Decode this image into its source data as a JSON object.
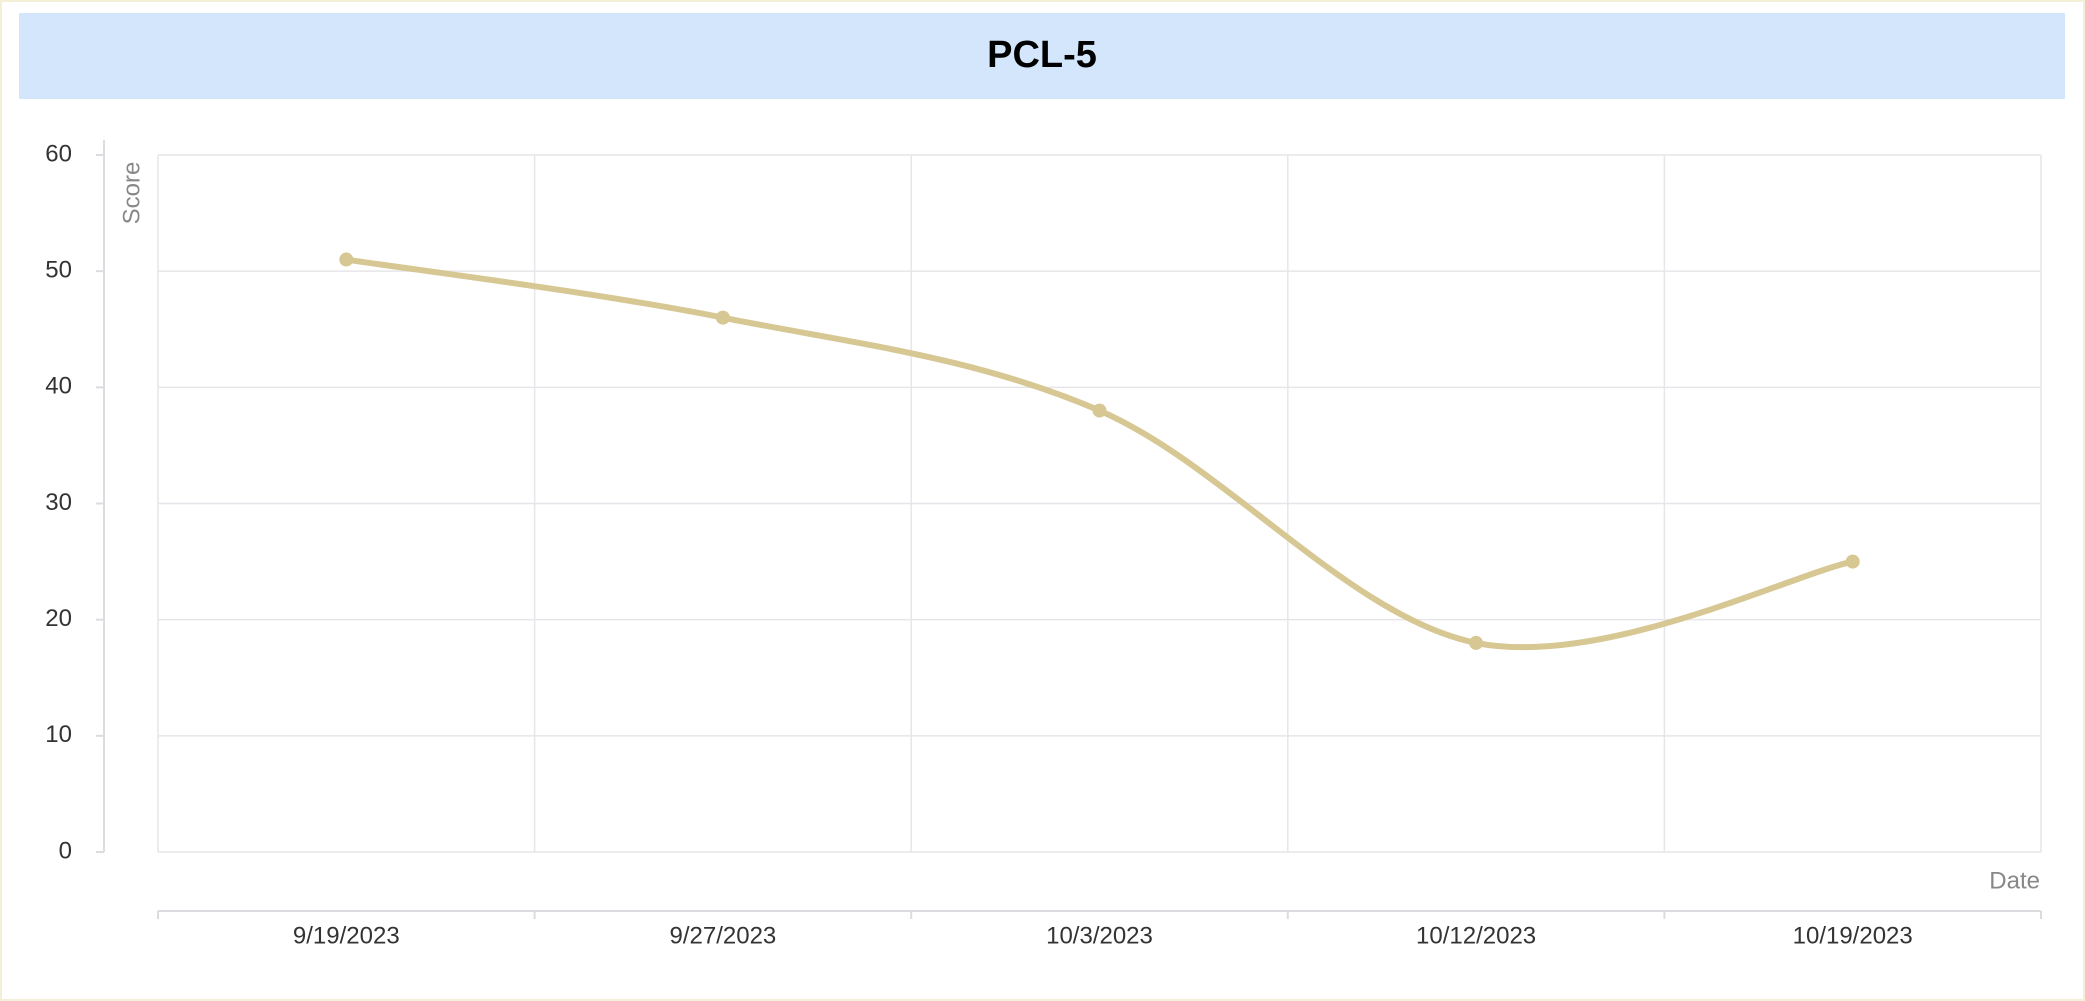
{
  "chart_data": {
    "type": "line",
    "title": "PCL-5",
    "x_label": "Date",
    "y_label": "Score",
    "categories": [
      "9/19/2023",
      "9/27/2023",
      "10/3/2023",
      "10/12/2023",
      "10/19/2023"
    ],
    "values": [
      51,
      46,
      38,
      18,
      25
    ],
    "color": "#d6c793",
    "ylim": [
      0,
      60
    ],
    "yticks": [
      0,
      10,
      20,
      30,
      40,
      50,
      60
    ],
    "grid": true,
    "smooth": true
  }
}
